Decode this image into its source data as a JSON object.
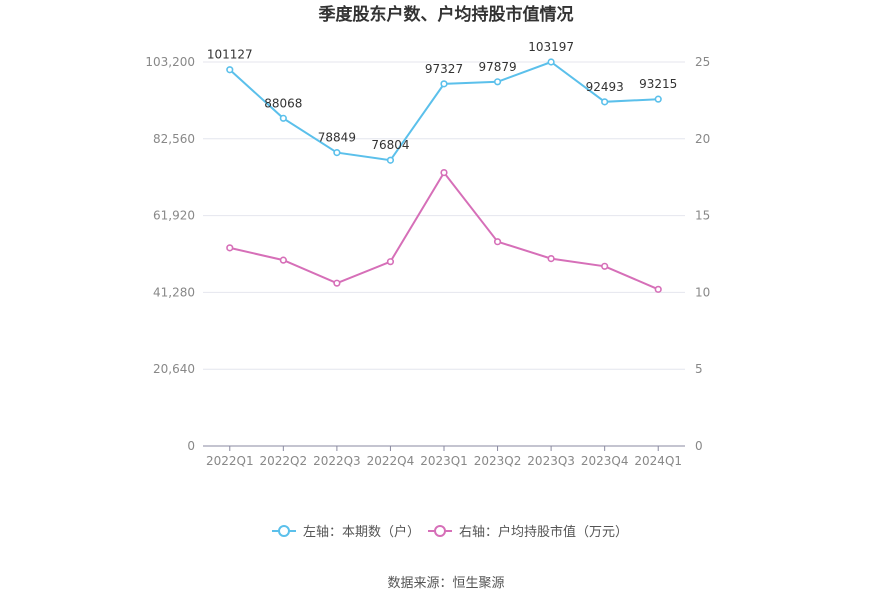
{
  "chart_data": {
    "type": "line",
    "title": "季度股东户数、户均持股市值情况",
    "categories": [
      "2022Q1",
      "2022Q2",
      "2022Q3",
      "2022Q4",
      "2023Q1",
      "2023Q2",
      "2023Q3",
      "2023Q4",
      "2024Q1"
    ],
    "y_left": {
      "ylim": [
        0,
        103200
      ],
      "ticks": [
        0,
        20640,
        41280,
        61920,
        82560,
        103200
      ],
      "tick_labels": [
        "0",
        "20,640",
        "41,280",
        "61,920",
        "82,560",
        "103,200"
      ]
    },
    "y_right": {
      "ylim": [
        0,
        25
      ],
      "ticks": [
        0,
        5,
        10,
        15,
        20,
        25
      ],
      "tick_labels": [
        "0",
        "5",
        "10",
        "15",
        "20",
        "25"
      ]
    },
    "series": [
      {
        "name": "左轴：本期数（户）",
        "axis": "left",
        "color": "#5bc0eb",
        "values": [
          101127,
          88068,
          78849,
          76804,
          97327,
          97879,
          103197,
          92493,
          93215
        ],
        "labels": [
          "101127",
          "88068",
          "78849",
          "76804",
          "97327",
          "97879",
          "103197",
          "92493",
          "93215"
        ]
      },
      {
        "name": "右轴：户均持股市值（万元）",
        "axis": "right",
        "color": "#d66fb8",
        "values": [
          12.9,
          12.1,
          10.6,
          12.0,
          17.8,
          13.3,
          12.2,
          11.7,
          10.2
        ]
      }
    ],
    "grid": true,
    "legend_position": "bottom"
  },
  "footer": {
    "source": "数据来源：恒生聚源"
  }
}
